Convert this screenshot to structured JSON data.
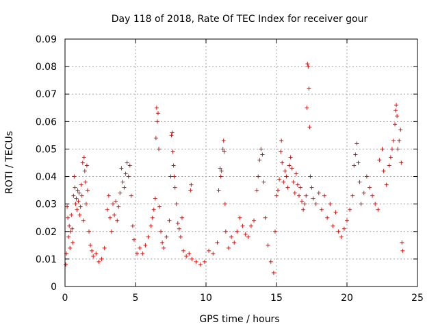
{
  "chart_data": {
    "type": "scatter",
    "title": "Day 118 of 2018, Rate Of TEC Index for receiver gour",
    "xlabel": "GPS time / hours",
    "ylabel": "ROTI / TECUs",
    "xlim": [
      0,
      25
    ],
    "ylim": [
      0,
      0.09
    ],
    "x_ticks": [
      "0",
      "5",
      "10",
      "15",
      "20",
      "25"
    ],
    "y_ticks": [
      "0",
      "0.01",
      "0.02",
      "0.03",
      "0.04",
      "0.05",
      "0.06",
      "0.07",
      "0.08",
      "0.09"
    ],
    "x_tick_values": [
      0,
      5,
      10,
      15,
      20,
      25
    ],
    "y_tick_values": [
      0,
      0.01,
      0.02,
      0.03,
      0.04,
      0.05,
      0.06,
      0.07,
      0.08,
      0.09
    ],
    "grid": true,
    "marker": "plus",
    "color": "#ff0000",
    "series": [
      {
        "points": [
          [
            0.05,
            0.008
          ],
          [
            0.1,
            0.012
          ],
          [
            0.15,
            0.029
          ],
          [
            0.2,
            0.025
          ],
          [
            0.25,
            0.018
          ],
          [
            0.3,
            0.022
          ],
          [
            0.35,
            0.014
          ],
          [
            0.4,
            0.02
          ],
          [
            0.45,
            0.026
          ],
          [
            0.5,
            0.021
          ],
          [
            0.55,
            0.016
          ],
          [
            0.6,
            0.033
          ],
          [
            0.65,
            0.04
          ],
          [
            0.7,
            0.036
          ],
          [
            0.75,
            0.03
          ],
          [
            0.8,
            0.032
          ],
          [
            0.85,
            0.028
          ],
          [
            0.9,
            0.035
          ],
          [
            0.95,
            0.031
          ],
          [
            1.0,
            0.034
          ],
          [
            1.05,
            0.026
          ],
          [
            1.1,
            0.029
          ],
          [
            1.15,
            0.037
          ],
          [
            1.2,
            0.033
          ],
          [
            1.25,
            0.045
          ],
          [
            1.3,
            0.024
          ],
          [
            1.35,
            0.047
          ],
          [
            1.4,
            0.042
          ],
          [
            1.45,
            0.038
          ],
          [
            1.5,
            0.03
          ],
          [
            1.55,
            0.044
          ],
          [
            1.6,
            0.035
          ],
          [
            1.7,
            0.02
          ],
          [
            1.8,
            0.015
          ],
          [
            1.9,
            0.013
          ],
          [
            2.0,
            0.011
          ],
          [
            2.2,
            0.012
          ],
          [
            2.4,
            0.009
          ],
          [
            2.6,
            0.01
          ],
          [
            2.8,
            0.014
          ],
          [
            3.0,
            0.028
          ],
          [
            3.1,
            0.033
          ],
          [
            3.2,
            0.025
          ],
          [
            3.3,
            0.02
          ],
          [
            3.4,
            0.03
          ],
          [
            3.5,
            0.026
          ],
          [
            3.6,
            0.031
          ],
          [
            3.7,
            0.024
          ],
          [
            3.8,
            0.029
          ],
          [
            3.9,
            0.034
          ],
          [
            4.0,
            0.043
          ],
          [
            4.1,
            0.038
          ],
          [
            4.2,
            0.036
          ],
          [
            4.3,
            0.041
          ],
          [
            4.4,
            0.045
          ],
          [
            4.5,
            0.04
          ],
          [
            4.6,
            0.044
          ],
          [
            4.7,
            0.033
          ],
          [
            4.8,
            0.022
          ],
          [
            4.9,
            0.017
          ],
          [
            5.1,
            0.012
          ],
          [
            5.3,
            0.014
          ],
          [
            5.5,
            0.012
          ],
          [
            5.7,
            0.015
          ],
          [
            5.9,
            0.018
          ],
          [
            6.1,
            0.022
          ],
          [
            6.2,
            0.025
          ],
          [
            6.3,
            0.028
          ],
          [
            6.4,
            0.032
          ],
          [
            6.45,
            0.054
          ],
          [
            6.5,
            0.065
          ],
          [
            6.55,
            0.06
          ],
          [
            6.6,
            0.063
          ],
          [
            6.65,
            0.05
          ],
          [
            6.7,
            0.029
          ],
          [
            6.8,
            0.02
          ],
          [
            6.9,
            0.016
          ],
          [
            7.0,
            0.014
          ],
          [
            7.2,
            0.018
          ],
          [
            7.4,
            0.024
          ],
          [
            7.5,
            0.04
          ],
          [
            7.55,
            0.055
          ],
          [
            7.6,
            0.056
          ],
          [
            7.65,
            0.049
          ],
          [
            7.7,
            0.044
          ],
          [
            7.75,
            0.04
          ],
          [
            7.8,
            0.036
          ],
          [
            7.9,
            0.03
          ],
          [
            8.0,
            0.023
          ],
          [
            8.1,
            0.021
          ],
          [
            8.2,
            0.018
          ],
          [
            8.3,
            0.025
          ],
          [
            8.4,
            0.013
          ],
          [
            8.6,
            0.011
          ],
          [
            8.8,
            0.012
          ],
          [
            8.9,
            0.035
          ],
          [
            8.95,
            0.037
          ],
          [
            9.0,
            0.01
          ],
          [
            9.3,
            0.009
          ],
          [
            9.6,
            0.008
          ],
          [
            9.9,
            0.009
          ],
          [
            10.2,
            0.013
          ],
          [
            10.5,
            0.012
          ],
          [
            10.8,
            0.016
          ],
          [
            10.9,
            0.035
          ],
          [
            11.0,
            0.043
          ],
          [
            11.05,
            0.04
          ],
          [
            11.1,
            0.042
          ],
          [
            11.2,
            0.05
          ],
          [
            11.25,
            0.053
          ],
          [
            11.3,
            0.049
          ],
          [
            11.35,
            0.03
          ],
          [
            11.4,
            0.02
          ],
          [
            11.6,
            0.014
          ],
          [
            11.8,
            0.018
          ],
          [
            12.0,
            0.016
          ],
          [
            12.2,
            0.02
          ],
          [
            12.4,
            0.025
          ],
          [
            12.6,
            0.022
          ],
          [
            12.8,
            0.019
          ],
          [
            13.0,
            0.018
          ],
          [
            13.2,
            0.022
          ],
          [
            13.4,
            0.024
          ],
          [
            13.6,
            0.035
          ],
          [
            13.7,
            0.04
          ],
          [
            13.8,
            0.046
          ],
          [
            13.9,
            0.05
          ],
          [
            14.0,
            0.048
          ],
          [
            14.1,
            0.038
          ],
          [
            14.2,
            0.025
          ],
          [
            14.4,
            0.015
          ],
          [
            14.6,
            0.009
          ],
          [
            14.8,
            0.005
          ],
          [
            14.9,
            0.02
          ],
          [
            15.0,
            0.033
          ],
          [
            15.1,
            0.035
          ],
          [
            15.2,
            0.039
          ],
          [
            15.3,
            0.049
          ],
          [
            15.35,
            0.053
          ],
          [
            15.4,
            0.045
          ],
          [
            15.5,
            0.038
          ],
          [
            15.6,
            0.042
          ],
          [
            15.7,
            0.04
          ],
          [
            15.8,
            0.036
          ],
          [
            15.9,
            0.044
          ],
          [
            16.0,
            0.047
          ],
          [
            16.1,
            0.043
          ],
          [
            16.2,
            0.038
          ],
          [
            16.3,
            0.034
          ],
          [
            16.4,
            0.041
          ],
          [
            16.5,
            0.037
          ],
          [
            16.6,
            0.033
          ],
          [
            16.7,
            0.036
          ],
          [
            16.8,
            0.031
          ],
          [
            16.9,
            0.028
          ],
          [
            17.0,
            0.03
          ],
          [
            17.1,
            0.033
          ],
          [
            17.15,
            0.065
          ],
          [
            17.2,
            0.081
          ],
          [
            17.25,
            0.08
          ],
          [
            17.3,
            0.072
          ],
          [
            17.35,
            0.058
          ],
          [
            17.4,
            0.04
          ],
          [
            17.5,
            0.036
          ],
          [
            17.6,
            0.032
          ],
          [
            17.8,
            0.03
          ],
          [
            18.0,
            0.034
          ],
          [
            18.2,
            0.028
          ],
          [
            18.4,
            0.033
          ],
          [
            18.6,
            0.025
          ],
          [
            18.8,
            0.03
          ],
          [
            19.0,
            0.022
          ],
          [
            19.2,
            0.027
          ],
          [
            19.4,
            0.02
          ],
          [
            19.6,
            0.018
          ],
          [
            19.8,
            0.021
          ],
          [
            20.0,
            0.024
          ],
          [
            20.2,
            0.028
          ],
          [
            20.4,
            0.033
          ],
          [
            20.5,
            0.044
          ],
          [
            20.6,
            0.048
          ],
          [
            20.7,
            0.052
          ],
          [
            20.8,
            0.045
          ],
          [
            20.9,
            0.038
          ],
          [
            21.0,
            0.03
          ],
          [
            21.2,
            0.034
          ],
          [
            21.4,
            0.04
          ],
          [
            21.6,
            0.036
          ],
          [
            21.8,
            0.033
          ],
          [
            22.0,
            0.03
          ],
          [
            22.2,
            0.028
          ],
          [
            22.3,
            0.046
          ],
          [
            22.5,
            0.05
          ],
          [
            22.6,
            0.042
          ],
          [
            22.8,
            0.037
          ],
          [
            23.0,
            0.044
          ],
          [
            23.1,
            0.047
          ],
          [
            23.2,
            0.05
          ],
          [
            23.3,
            0.053
          ],
          [
            23.4,
            0.059
          ],
          [
            23.45,
            0.064
          ],
          [
            23.5,
            0.066
          ],
          [
            23.55,
            0.062
          ],
          [
            23.6,
            0.05
          ],
          [
            23.7,
            0.053
          ],
          [
            23.8,
            0.057
          ],
          [
            23.85,
            0.045
          ],
          [
            23.9,
            0.016
          ],
          [
            23.95,
            0.013
          ]
        ]
      }
    ]
  }
}
